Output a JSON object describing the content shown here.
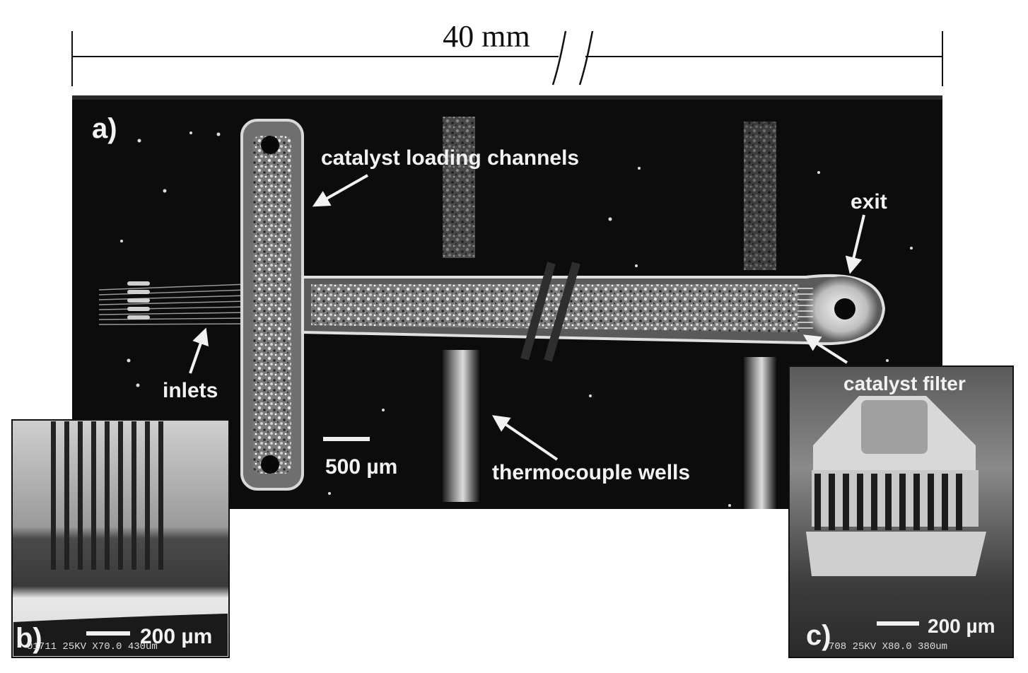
{
  "dimension": {
    "length_label": "40 mm"
  },
  "panel_a": {
    "letter": "a)",
    "labels": {
      "catalyst_loading_channels": "catalyst loading channels",
      "exit": "exit",
      "inlets": "inlets",
      "thermocouple_wells": "thermocouple wells",
      "scale_bar": "500 µm"
    }
  },
  "panel_b": {
    "letter": "b)",
    "scale_bar": "200 µm",
    "sem_footer": "01711 25KV X70.0 430um"
  },
  "panel_c": {
    "letter": "c)",
    "title": "catalyst filter",
    "scale_bar": "200 µm",
    "sem_footer": "708 25KV X80.0 380um"
  },
  "colors": {
    "background": "#ffffff",
    "micrograph_dark": "#0c0c0c",
    "channel_light": "#bdbdbd",
    "label_white": "#f2f2f2"
  }
}
